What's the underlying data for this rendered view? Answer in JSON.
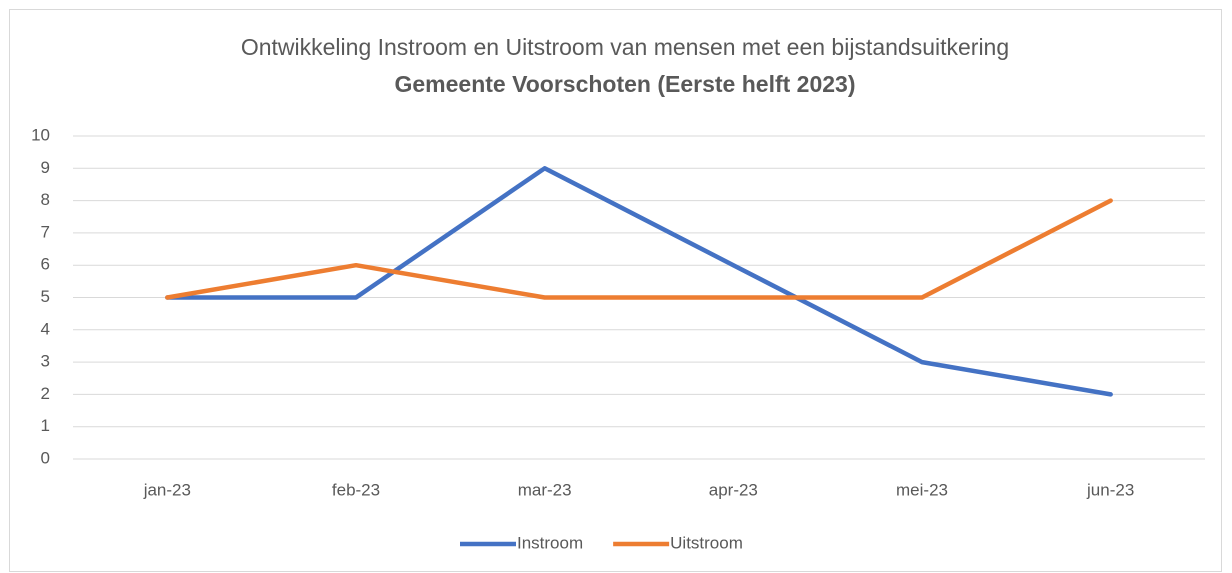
{
  "chart_data": {
    "type": "line",
    "title": "Ontwikkeling Instroom en Uitstroom van mensen met een bijstandsuitkering",
    "subtitle": "Gemeente Voorschoten (Eerste helft 2023)",
    "categories": [
      "jan-23",
      "feb-23",
      "mar-23",
      "apr-23",
      "mei-23",
      "jun-23"
    ],
    "series": [
      {
        "name": "Instroom",
        "color": "#4472c4",
        "values": [
          5,
          5,
          9,
          6,
          3,
          2
        ]
      },
      {
        "name": "Uitstroom",
        "color": "#ed7d31",
        "values": [
          5,
          6,
          5,
          5,
          5,
          8
        ]
      }
    ],
    "ylim": [
      0,
      10
    ],
    "yticks": [
      0,
      1,
      2,
      3,
      4,
      5,
      6,
      7,
      8,
      9,
      10
    ],
    "grid": true,
    "legend": "bottom"
  }
}
